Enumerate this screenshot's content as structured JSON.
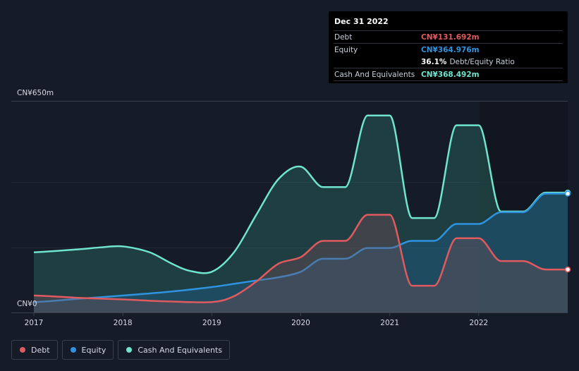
{
  "tooltip": {
    "date": "Dec 31 2022",
    "debt_label": "Debt",
    "debt_value": "CN¥131.692m",
    "equity_label": "Equity",
    "equity_value": "CN¥364.976m",
    "ratio_value": "36.1%",
    "ratio_label": "Debt/Equity Ratio",
    "cash_label": "Cash And Equivalents",
    "cash_value": "CN¥368.492m"
  },
  "legend": {
    "debt": "Debt",
    "equity": "Equity",
    "cash": "Cash And Equivalents"
  },
  "colors": {
    "debt": "#e05a5f",
    "equity": "#2f94e0",
    "cash": "#6fe5cf",
    "background": "#151b27",
    "grid": "#2b313c"
  },
  "chart_data": {
    "type": "area",
    "title": "",
    "ylabel_top": "CN¥650m",
    "ylabel_bottom": "CN¥0",
    "ylim": [
      0,
      650
    ],
    "xlim": [
      2017.0,
      2023.0
    ],
    "x_ticks": [
      2017,
      2018,
      2019,
      2020,
      2021,
      2022
    ],
    "x_tick_labels": [
      "2017",
      "2018",
      "2019",
      "2020",
      "2021",
      "2022"
    ],
    "series": [
      {
        "name": "Cash And Equivalents",
        "key": "cash",
        "points": [
          [
            2017.0,
            185
          ],
          [
            2017.5,
            194
          ],
          [
            2017.75,
            200
          ],
          [
            2018.0,
            203
          ],
          [
            2018.3,
            185
          ],
          [
            2018.55,
            150
          ],
          [
            2018.75,
            128
          ],
          [
            2019.0,
            125
          ],
          [
            2019.25,
            185
          ],
          [
            2019.5,
            300
          ],
          [
            2019.75,
            410
          ],
          [
            2020.0,
            448
          ],
          [
            2020.25,
            385
          ],
          [
            2020.5,
            385
          ],
          [
            2020.75,
            605
          ],
          [
            2021.0,
            605
          ],
          [
            2021.25,
            290
          ],
          [
            2021.5,
            290
          ],
          [
            2021.75,
            575
          ],
          [
            2022.0,
            575
          ],
          [
            2022.25,
            310
          ],
          [
            2022.5,
            310
          ],
          [
            2022.75,
            368
          ],
          [
            2023.0,
            368
          ]
        ]
      },
      {
        "name": "Equity",
        "key": "equity",
        "points": [
          [
            2017.0,
            32
          ],
          [
            2017.5,
            42
          ],
          [
            2018.0,
            52
          ],
          [
            2018.5,
            63
          ],
          [
            2019.0,
            78
          ],
          [
            2019.25,
            88
          ],
          [
            2019.5,
            98
          ],
          [
            2019.75,
            108
          ],
          [
            2020.0,
            125
          ],
          [
            2020.25,
            165
          ],
          [
            2020.5,
            165
          ],
          [
            2020.75,
            198
          ],
          [
            2021.0,
            198
          ],
          [
            2021.25,
            220
          ],
          [
            2021.5,
            220
          ],
          [
            2021.75,
            272
          ],
          [
            2022.0,
            272
          ],
          [
            2022.25,
            308
          ],
          [
            2022.5,
            308
          ],
          [
            2022.75,
            365
          ],
          [
            2023.0,
            365
          ]
        ]
      },
      {
        "name": "Debt",
        "key": "debt",
        "points": [
          [
            2017.0,
            52
          ],
          [
            2017.5,
            45
          ],
          [
            2018.0,
            40
          ],
          [
            2018.5,
            34
          ],
          [
            2019.0,
            32
          ],
          [
            2019.25,
            50
          ],
          [
            2019.5,
            95
          ],
          [
            2019.75,
            150
          ],
          [
            2020.0,
            170
          ],
          [
            2020.25,
            220
          ],
          [
            2020.5,
            220
          ],
          [
            2020.75,
            300
          ],
          [
            2021.0,
            300
          ],
          [
            2021.25,
            82
          ],
          [
            2021.5,
            82
          ],
          [
            2021.75,
            228
          ],
          [
            2022.0,
            228
          ],
          [
            2022.25,
            158
          ],
          [
            2022.5,
            158
          ],
          [
            2022.75,
            132
          ],
          [
            2023.0,
            132
          ]
        ]
      }
    ]
  }
}
